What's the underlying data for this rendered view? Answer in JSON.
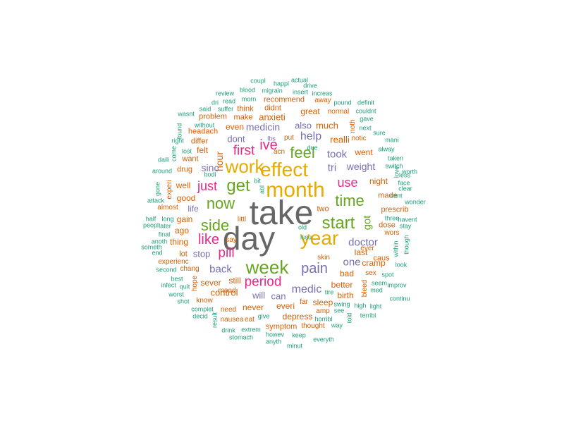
{
  "palette": {
    "g": "#666666",
    "y": "#e6ab02",
    "o": "#d95f02",
    "gr": "#66a61e",
    "pk": "#e7298a",
    "pu": "#7570b3",
    "t": "#1b9e77"
  },
  "words": [
    {
      "text": "take",
      "c": "g"
    },
    {
      "text": "day",
      "c": "g"
    },
    {
      "text": "month",
      "c": "y"
    },
    {
      "text": "year",
      "c": "y"
    },
    {
      "text": "effect",
      "c": "y"
    },
    {
      "text": "work",
      "c": "y"
    },
    {
      "text": "week",
      "c": "gr"
    },
    {
      "text": "get",
      "c": "gr"
    },
    {
      "text": "now",
      "c": "gr"
    },
    {
      "text": "side",
      "c": "gr"
    },
    {
      "text": "start",
      "c": "gr"
    },
    {
      "text": "time",
      "c": "gr"
    },
    {
      "text": "feel",
      "c": "gr"
    },
    {
      "text": "ive",
      "c": "pk"
    },
    {
      "text": "pain",
      "c": "pu"
    },
    {
      "text": "period",
      "c": "pk"
    },
    {
      "text": "like",
      "c": "pk"
    },
    {
      "text": "just",
      "c": "pk"
    },
    {
      "text": "first",
      "c": "pk"
    },
    {
      "text": "pill",
      "c": "pk"
    },
    {
      "text": "use",
      "c": "pk"
    },
    {
      "text": "doctor",
      "c": "pu"
    },
    {
      "text": "help",
      "c": "pu"
    },
    {
      "text": "back",
      "c": "pu"
    },
    {
      "text": "medic",
      "c": "pu"
    },
    {
      "text": "hour",
      "c": "o"
    },
    {
      "text": "took",
      "c": "pu"
    },
    {
      "text": "tri",
      "c": "pu"
    },
    {
      "text": "weight",
      "c": "pu"
    },
    {
      "text": "one",
      "c": "pu"
    },
    {
      "text": "also",
      "c": "pu"
    },
    {
      "text": "medicin",
      "c": "pu"
    },
    {
      "text": "sinc",
      "c": "pu"
    },
    {
      "text": "got",
      "c": "gr"
    },
    {
      "text": "realli",
      "c": "o"
    },
    {
      "text": "much",
      "c": "o"
    },
    {
      "text": "dont",
      "c": "pu"
    },
    {
      "text": "even",
      "c": "o"
    },
    {
      "text": "great",
      "c": "o"
    },
    {
      "text": "went",
      "c": "o"
    },
    {
      "text": "night",
      "c": "o"
    },
    {
      "text": "last",
      "c": "o"
    },
    {
      "text": "bad",
      "c": "o"
    },
    {
      "text": "cramp",
      "c": "o"
    },
    {
      "text": "better",
      "c": "o"
    },
    {
      "text": "birth",
      "c": "o"
    },
    {
      "text": "sleep",
      "c": "o"
    },
    {
      "text": "depress",
      "c": "o"
    },
    {
      "text": "control",
      "c": "o"
    },
    {
      "text": "never",
      "c": "o"
    },
    {
      "text": "everi",
      "c": "o"
    },
    {
      "text": "will",
      "c": "pu"
    },
    {
      "text": "can",
      "c": "pu"
    },
    {
      "text": "still",
      "c": "o"
    },
    {
      "text": "sever",
      "c": "o"
    },
    {
      "text": "stop",
      "c": "pu"
    },
    {
      "text": "life",
      "c": "pu"
    },
    {
      "text": "thing",
      "c": "o"
    },
    {
      "text": "ago",
      "c": "o"
    },
    {
      "text": "gain",
      "c": "o"
    },
    {
      "text": "good",
      "c": "o"
    },
    {
      "text": "well",
      "c": "o"
    },
    {
      "text": "drug",
      "c": "o"
    },
    {
      "text": "felt",
      "c": "o"
    },
    {
      "text": "want",
      "c": "o"
    },
    {
      "text": "differ",
      "c": "o"
    },
    {
      "text": "anxieti",
      "c": "o"
    },
    {
      "text": "make",
      "c": "o"
    },
    {
      "text": "think",
      "c": "o"
    },
    {
      "text": "didnt",
      "c": "o"
    },
    {
      "text": "recommend",
      "c": "o"
    },
    {
      "text": "headach",
      "c": "o"
    },
    {
      "text": "problem",
      "c": "o"
    },
    {
      "text": "two",
      "c": "o"
    },
    {
      "text": "dose",
      "c": "o"
    },
    {
      "text": "prescrib",
      "c": "o"
    },
    {
      "text": "made",
      "c": "o"
    },
    {
      "text": "caus",
      "c": "o"
    },
    {
      "text": "notic",
      "c": "o"
    },
    {
      "text": "normal",
      "c": "o"
    },
    {
      "text": "mood",
      "c": "o"
    },
    {
      "text": "need",
      "c": "o"
    },
    {
      "text": "symptom",
      "c": "o"
    },
    {
      "text": "thought",
      "c": "o"
    },
    {
      "text": "far",
      "c": "o"
    },
    {
      "text": "lot",
      "c": "o"
    },
    {
      "text": "chang",
      "c": "o"
    },
    {
      "text": "experi",
      "c": "o"
    },
    {
      "text": "almost",
      "c": "o"
    },
    {
      "text": "hope",
      "c": "o"
    },
    {
      "text": "say",
      "c": "o"
    },
    {
      "text": "littl",
      "c": "o"
    },
    {
      "text": "put",
      "c": "o"
    },
    {
      "text": "acn",
      "c": "o"
    },
    {
      "text": "eat",
      "c": "o"
    },
    {
      "text": "away",
      "c": "o"
    },
    {
      "text": "noth",
      "c": "o"
    },
    {
      "text": "skin",
      "c": "o"
    },
    {
      "text": "bleed",
      "c": "o"
    },
    {
      "text": "amp",
      "c": "o"
    },
    {
      "text": "know",
      "c": "o"
    },
    {
      "text": "nausea",
      "c": "o"
    },
    {
      "text": "experienc",
      "c": "o"
    },
    {
      "text": "ever",
      "c": "o"
    },
    {
      "text": "wors",
      "c": "o"
    },
    {
      "text": "sex",
      "c": "o"
    },
    {
      "text": "lbs",
      "c": "pu"
    },
    {
      "text": "old",
      "c": "t"
    },
    {
      "text": "bit",
      "c": "t"
    },
    {
      "text": "abl",
      "c": "t"
    },
    {
      "text": "issu",
      "c": "t"
    },
    {
      "text": "tire",
      "c": "t"
    },
    {
      "text": "swing",
      "c": "t"
    },
    {
      "text": "see",
      "c": "t"
    },
    {
      "text": "high",
      "c": "t"
    },
    {
      "text": "way",
      "c": "t"
    },
    {
      "text": "told",
      "c": "t"
    },
    {
      "text": "horribl",
      "c": "t"
    },
    {
      "text": "give",
      "c": "t"
    },
    {
      "text": "keep",
      "c": "t"
    },
    {
      "text": "howev",
      "c": "t"
    },
    {
      "text": "anyth",
      "c": "t"
    },
    {
      "text": "everyth",
      "c": "t"
    },
    {
      "text": "minut",
      "c": "t"
    },
    {
      "text": "extrem",
      "c": "t"
    },
    {
      "text": "drink",
      "c": "t"
    },
    {
      "text": "stomach",
      "c": "t"
    },
    {
      "text": "result",
      "c": "t"
    },
    {
      "text": "decid",
      "c": "t"
    },
    {
      "text": "complet",
      "c": "t"
    },
    {
      "text": "shot",
      "c": "t"
    },
    {
      "text": "worst",
      "c": "t"
    },
    {
      "text": "infect",
      "c": "t"
    },
    {
      "text": "quit",
      "c": "t"
    },
    {
      "text": "best",
      "c": "t"
    },
    {
      "text": "second",
      "c": "t"
    },
    {
      "text": "end",
      "c": "t"
    },
    {
      "text": "anoth",
      "c": "t"
    },
    {
      "text": "someth",
      "c": "t"
    },
    {
      "text": "final",
      "c": "t"
    },
    {
      "text": "later",
      "c": "t"
    },
    {
      "text": "peopl",
      "c": "t"
    },
    {
      "text": "half",
      "c": "t"
    },
    {
      "text": "long",
      "c": "t"
    },
    {
      "text": "attack",
      "c": "t"
    },
    {
      "text": "gone",
      "c": "t"
    },
    {
      "text": "around",
      "c": "t"
    },
    {
      "text": "daili",
      "c": "t"
    },
    {
      "text": "lost",
      "c": "t"
    },
    {
      "text": "right",
      "c": "t"
    },
    {
      "text": "come",
      "c": "t"
    },
    {
      "text": "found",
      "c": "t"
    },
    {
      "text": "bodi",
      "c": "t"
    },
    {
      "text": "without",
      "c": "t"
    },
    {
      "text": "wasnt",
      "c": "t"
    },
    {
      "text": "said",
      "c": "t"
    },
    {
      "text": "dri",
      "c": "t"
    },
    {
      "text": "suffer",
      "c": "t"
    },
    {
      "text": "review",
      "c": "t"
    },
    {
      "text": "read",
      "c": "t"
    },
    {
      "text": "morn",
      "c": "t"
    },
    {
      "text": "blood",
      "c": "t"
    },
    {
      "text": "migrain",
      "c": "t"
    },
    {
      "text": "coupl",
      "c": "t"
    },
    {
      "text": "happi",
      "c": "t"
    },
    {
      "text": "actual",
      "c": "t"
    },
    {
      "text": "drive",
      "c": "t"
    },
    {
      "text": "insert",
      "c": "t"
    },
    {
      "text": "increas",
      "c": "t"
    },
    {
      "text": "pound",
      "c": "t"
    },
    {
      "text": "definit",
      "c": "t"
    },
    {
      "text": "couldnt",
      "c": "t"
    },
    {
      "text": "gave",
      "c": "t"
    },
    {
      "text": "next",
      "c": "t"
    },
    {
      "text": "sure",
      "c": "t"
    },
    {
      "text": "mani",
      "c": "t"
    },
    {
      "text": "alway",
      "c": "t"
    },
    {
      "text": "switch",
      "c": "t"
    },
    {
      "text": "due",
      "c": "t"
    },
    {
      "text": "taken",
      "c": "t"
    },
    {
      "text": "less",
      "c": "t"
    },
    {
      "text": "worth",
      "c": "t"
    },
    {
      "text": "love",
      "c": "t"
    },
    {
      "text": "face",
      "c": "t"
    },
    {
      "text": "clear",
      "c": "t"
    },
    {
      "text": "cant",
      "c": "t"
    },
    {
      "text": "wonder",
      "c": "t"
    },
    {
      "text": "havent",
      "c": "t"
    },
    {
      "text": "three",
      "c": "t"
    },
    {
      "text": "stay",
      "c": "t"
    },
    {
      "text": "within",
      "c": "t"
    },
    {
      "text": "though",
      "c": "t"
    },
    {
      "text": "look",
      "c": "t"
    },
    {
      "text": "spot",
      "c": "t"
    },
    {
      "text": "seem",
      "c": "t"
    },
    {
      "text": "improv",
      "c": "t"
    },
    {
      "text": "med",
      "c": "t"
    },
    {
      "text": "continu",
      "c": "t"
    },
    {
      "text": "light",
      "c": "t"
    },
    {
      "text": "terribl",
      "c": "t"
    }
  ]
}
